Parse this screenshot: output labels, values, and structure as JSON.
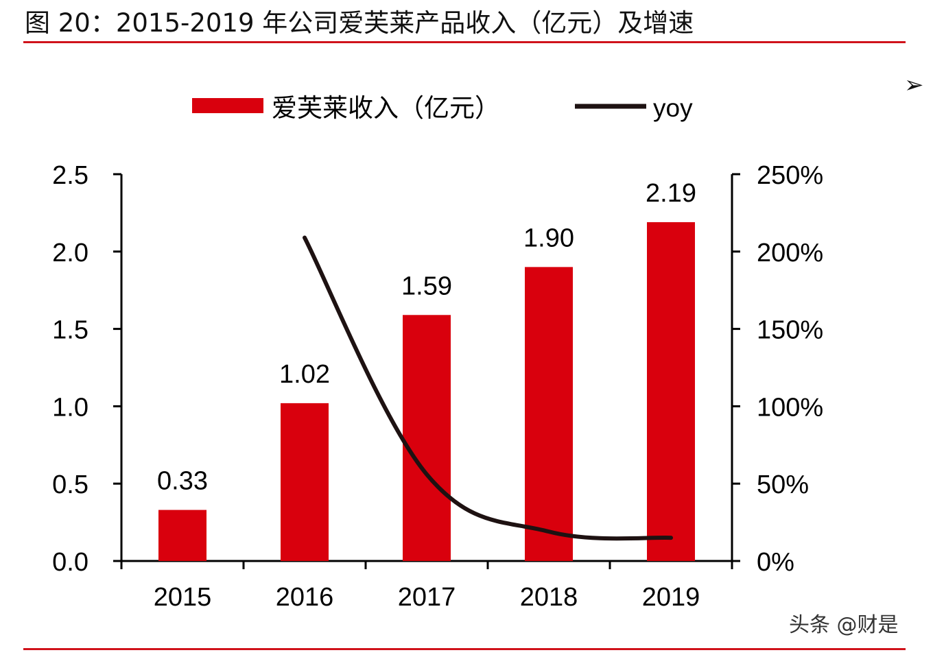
{
  "figure": {
    "title": "图 20：2015-2019 年公司爱芙莱产品收入（亿元）及增速",
    "watermark": "头条 @财是",
    "arrow_glyph": "➢"
  },
  "colors": {
    "bar": "#d9000d",
    "line": "#1e1212",
    "rule": "#d0121b"
  },
  "chart_data": {
    "type": "bar",
    "title": "",
    "categories": [
      "2015",
      "2016",
      "2017",
      "2018",
      "2019"
    ],
    "series": [
      {
        "name": "爱芙莱收入（亿元）",
        "type": "bar",
        "axis": "left",
        "values": [
          0.33,
          1.02,
          1.59,
          1.9,
          2.19
        ],
        "labels": [
          "0.33",
          "1.02",
          "1.59",
          "1.90",
          "2.19"
        ]
      },
      {
        "name": "yoy",
        "type": "line",
        "axis": "right",
        "values": [
          null,
          2.09,
          0.56,
          0.19,
          0.15
        ]
      }
    ],
    "y_left": {
      "min": 0,
      "max": 2.5,
      "ticks": [
        "0.0",
        "0.5",
        "1.0",
        "1.5",
        "2.0",
        "2.5"
      ]
    },
    "y_right": {
      "min": 0,
      "max": 2.5,
      "ticks": [
        "0%",
        "50%",
        "100%",
        "150%",
        "200%",
        "250%"
      ]
    },
    "grid": false,
    "legend_position": "top-center"
  }
}
